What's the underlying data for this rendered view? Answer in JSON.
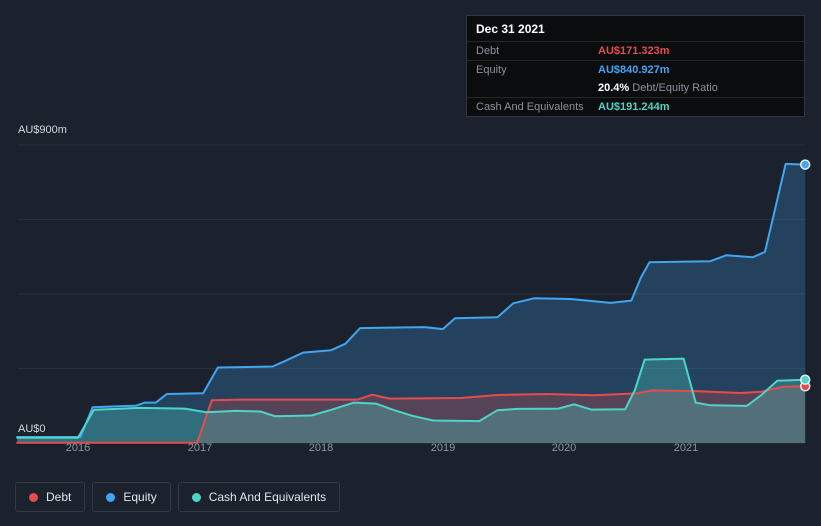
{
  "colors": {
    "debt": "#e64c4c",
    "equity": "#41a5f1",
    "cash": "#4fd4c8",
    "grid": "#283140",
    "background": "#1b222d"
  },
  "tooltip": {
    "date": "Dec 31 2021",
    "rows": [
      {
        "label": "Debt",
        "value": "AU$171.323m",
        "color_key": "debt"
      },
      {
        "label": "Equity",
        "value": "AU$840.927m",
        "color_key": "equity"
      },
      {
        "label": "",
        "ratio_value": "20.4%",
        "ratio_text": " Debt/Equity Ratio"
      },
      {
        "label": "Cash And Equivalents",
        "value": "AU$191.244m",
        "color_key": "cash"
      }
    ]
  },
  "legend": {
    "items": [
      {
        "label": "Debt",
        "color_key": "debt"
      },
      {
        "label": "Equity",
        "color_key": "equity"
      },
      {
        "label": "Cash And Equivalents",
        "color_key": "cash"
      }
    ]
  },
  "chart_data": {
    "type": "area",
    "unit": "AU$ millions",
    "y_range": [
      0,
      900
    ],
    "x_range": [
      2015.5,
      2021.98
    ],
    "grid_values": [
      0,
      225,
      450,
      675,
      900
    ],
    "y_axis_labels": {
      "top": "AU$900m",
      "bottom": "AU$0"
    },
    "x_tick_labels": [
      "2016",
      "2017",
      "2018",
      "2019",
      "2020",
      "2021"
    ],
    "legend_position": "bottom-left",
    "series": [
      {
        "name": "Equity",
        "color_key": "equity",
        "end_value": 840.927,
        "points": [
          [
            2015.5,
            18
          ],
          [
            2016.02,
            18
          ],
          [
            2016.12,
            108
          ],
          [
            2016.48,
            113
          ],
          [
            2016.55,
            122
          ],
          [
            2016.64,
            122
          ],
          [
            2016.73,
            148
          ],
          [
            2017.03,
            150
          ],
          [
            2017.15,
            228
          ],
          [
            2017.6,
            231
          ],
          [
            2017.7,
            247
          ],
          [
            2017.85,
            273
          ],
          [
            2018.08,
            280
          ],
          [
            2018.2,
            300
          ],
          [
            2018.32,
            347
          ],
          [
            2018.85,
            350
          ],
          [
            2019.0,
            344
          ],
          [
            2019.1,
            377
          ],
          [
            2019.45,
            380
          ],
          [
            2019.58,
            422
          ],
          [
            2019.75,
            437
          ],
          [
            2020.05,
            435
          ],
          [
            2020.38,
            423
          ],
          [
            2020.55,
            430
          ],
          [
            2020.63,
            500
          ],
          [
            2020.7,
            546
          ],
          [
            2021.2,
            549
          ],
          [
            2021.33,
            567
          ],
          [
            2021.55,
            561
          ],
          [
            2021.65,
            577
          ],
          [
            2021.82,
            843
          ],
          [
            2021.98,
            840.9
          ]
        ]
      },
      {
        "name": "Debt",
        "color_key": "debt",
        "end_value": 171.323,
        "points": [
          [
            2015.5,
            1
          ],
          [
            2016.98,
            1
          ],
          [
            2017.1,
            129
          ],
          [
            2017.35,
            131
          ],
          [
            2018.3,
            131
          ],
          [
            2018.42,
            146
          ],
          [
            2018.56,
            134
          ],
          [
            2019.15,
            136
          ],
          [
            2019.45,
            145
          ],
          [
            2019.85,
            148
          ],
          [
            2020.25,
            144
          ],
          [
            2020.6,
            150
          ],
          [
            2020.72,
            159
          ],
          [
            2021.1,
            156
          ],
          [
            2021.45,
            151
          ],
          [
            2021.62,
            155
          ],
          [
            2021.8,
            170
          ],
          [
            2021.98,
            171.3
          ]
        ]
      },
      {
        "name": "Cash And Equivalents",
        "color_key": "cash",
        "end_value": 191.244,
        "points": [
          [
            2015.5,
            16
          ],
          [
            2016.0,
            16
          ],
          [
            2016.13,
            100
          ],
          [
            2016.5,
            106
          ],
          [
            2016.88,
            104
          ],
          [
            2017.05,
            93
          ],
          [
            2017.3,
            97
          ],
          [
            2017.5,
            95
          ],
          [
            2017.62,
            81
          ],
          [
            2017.92,
            83
          ],
          [
            2018.08,
            100
          ],
          [
            2018.27,
            122
          ],
          [
            2018.45,
            119
          ],
          [
            2018.6,
            99
          ],
          [
            2018.75,
            82
          ],
          [
            2018.92,
            68
          ],
          [
            2019.3,
            66
          ],
          [
            2019.45,
            99
          ],
          [
            2019.62,
            103
          ],
          [
            2019.95,
            104
          ],
          [
            2020.08,
            117
          ],
          [
            2020.22,
            101
          ],
          [
            2020.5,
            102
          ],
          [
            2020.58,
            160
          ],
          [
            2020.66,
            252
          ],
          [
            2020.98,
            255
          ],
          [
            2021.08,
            122
          ],
          [
            2021.2,
            114
          ],
          [
            2021.5,
            112
          ],
          [
            2021.62,
            145
          ],
          [
            2021.75,
            188
          ],
          [
            2021.98,
            191.2
          ]
        ]
      }
    ]
  }
}
